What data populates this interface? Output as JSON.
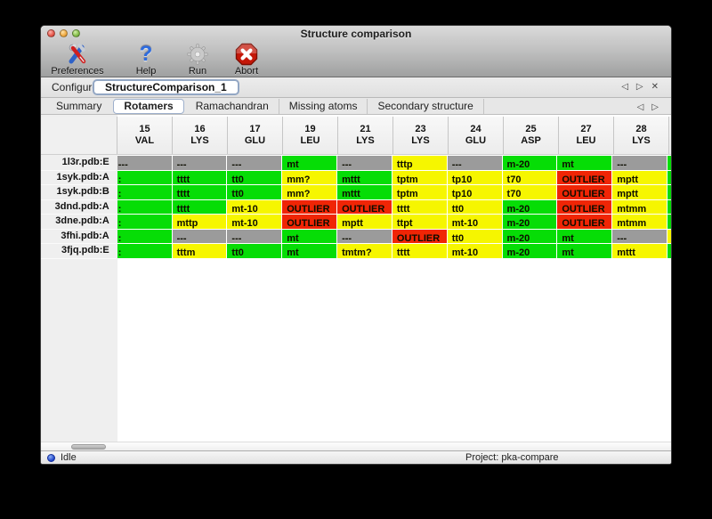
{
  "window": {
    "title": "Structure comparison"
  },
  "toolbar": {
    "items": [
      {
        "label": "Preferences",
        "icon": "tools-icon"
      },
      {
        "label": "Help",
        "icon": "question-icon"
      },
      {
        "label": "Run",
        "icon": "gear-icon"
      },
      {
        "label": "Abort",
        "icon": "abort-icon"
      }
    ]
  },
  "configure_bar": {
    "label": "Configure",
    "session_tab": "StructureComparison_1",
    "nav": {
      "prev": "◁",
      "next": "▷",
      "close": "✕"
    }
  },
  "tab_bar": {
    "tabs": [
      "Summary",
      "Rotamers",
      "Ramachandran",
      "Missing atoms",
      "Secondary structure"
    ],
    "active_index": 1,
    "nav": {
      "prev": "◁",
      "next": "▷"
    }
  },
  "rotamer_table": {
    "columns": [
      {
        "num": "15",
        "res": "VAL"
      },
      {
        "num": "16",
        "res": "LYS"
      },
      {
        "num": "17",
        "res": "GLU"
      },
      {
        "num": "19",
        "res": "LEU"
      },
      {
        "num": "21",
        "res": "LYS"
      },
      {
        "num": "23",
        "res": "LYS"
      },
      {
        "num": "24",
        "res": "GLU"
      },
      {
        "num": "25",
        "res": "ASP"
      },
      {
        "num": "27",
        "res": "LEU"
      },
      {
        "num": "28",
        "res": "LYS"
      }
    ],
    "legend_colors": {
      "green": "#06dd06",
      "yellow": "#f6f600",
      "red": "#f02505",
      "gray": "#9b9b9b"
    },
    "rows": [
      {
        "label": "1l3r.pdb:E",
        "edge": "green",
        "cells": [
          {
            "t": "---",
            "c": "gray"
          },
          {
            "t": "---",
            "c": "gray"
          },
          {
            "t": "---",
            "c": "gray"
          },
          {
            "t": "mt",
            "c": "green"
          },
          {
            "t": "---",
            "c": "gray"
          },
          {
            "t": "tttp",
            "c": "yellow"
          },
          {
            "t": "---",
            "c": "gray"
          },
          {
            "t": "m-20",
            "c": "green"
          },
          {
            "t": "mt",
            "c": "green"
          },
          {
            "t": "---",
            "c": "gray"
          }
        ]
      },
      {
        "label": "1syk.pdb:A",
        "edge": "green",
        "cells": [
          {
            "t": ":",
            "c": "green"
          },
          {
            "t": "tttt",
            "c": "green"
          },
          {
            "t": "tt0",
            "c": "green"
          },
          {
            "t": "mm?",
            "c": "yellow"
          },
          {
            "t": "mttt",
            "c": "green"
          },
          {
            "t": "tptm",
            "c": "yellow"
          },
          {
            "t": "tp10",
            "c": "yellow"
          },
          {
            "t": "t70",
            "c": "yellow"
          },
          {
            "t": "OUTLIER",
            "c": "red"
          },
          {
            "t": "mptt",
            "c": "yellow"
          }
        ]
      },
      {
        "label": "1syk.pdb:B",
        "edge": "green",
        "cells": [
          {
            "t": ":",
            "c": "green"
          },
          {
            "t": "tttt",
            "c": "green"
          },
          {
            "t": "tt0",
            "c": "green"
          },
          {
            "t": "mm?",
            "c": "yellow"
          },
          {
            "t": "mttt",
            "c": "green"
          },
          {
            "t": "tptm",
            "c": "yellow"
          },
          {
            "t": "tp10",
            "c": "yellow"
          },
          {
            "t": "t70",
            "c": "yellow"
          },
          {
            "t": "OUTLIER",
            "c": "red"
          },
          {
            "t": "mptt",
            "c": "yellow"
          }
        ]
      },
      {
        "label": "3dnd.pdb:A",
        "edge": "green",
        "cells": [
          {
            "t": ":",
            "c": "green"
          },
          {
            "t": "tttt",
            "c": "green"
          },
          {
            "t": "mt-10",
            "c": "yellow"
          },
          {
            "t": "OUTLIER",
            "c": "red"
          },
          {
            "t": "OUTLIER",
            "c": "red"
          },
          {
            "t": "tttt",
            "c": "yellow"
          },
          {
            "t": "tt0",
            "c": "yellow"
          },
          {
            "t": "m-20",
            "c": "green"
          },
          {
            "t": "OUTLIER",
            "c": "red"
          },
          {
            "t": "mtmm",
            "c": "yellow"
          }
        ]
      },
      {
        "label": "3dne.pdb:A",
        "edge": "green",
        "cells": [
          {
            "t": ":",
            "c": "green"
          },
          {
            "t": "mttp",
            "c": "yellow"
          },
          {
            "t": "mt-10",
            "c": "yellow"
          },
          {
            "t": "OUTLIER",
            "c": "red"
          },
          {
            "t": "mptt",
            "c": "yellow"
          },
          {
            "t": "ttpt",
            "c": "yellow"
          },
          {
            "t": "mt-10",
            "c": "yellow"
          },
          {
            "t": "m-20",
            "c": "green"
          },
          {
            "t": "OUTLIER",
            "c": "red"
          },
          {
            "t": "mtmm",
            "c": "yellow"
          }
        ]
      },
      {
        "label": "3fhi.pdb:A",
        "edge": "yellow",
        "cells": [
          {
            "t": ":",
            "c": "green"
          },
          {
            "t": "---",
            "c": "gray"
          },
          {
            "t": "---",
            "c": "gray"
          },
          {
            "t": "mt",
            "c": "green"
          },
          {
            "t": "---",
            "c": "gray"
          },
          {
            "t": "OUTLIER",
            "c": "red"
          },
          {
            "t": "tt0",
            "c": "yellow"
          },
          {
            "t": "m-20",
            "c": "green"
          },
          {
            "t": "mt",
            "c": "green"
          },
          {
            "t": "---",
            "c": "gray"
          }
        ]
      },
      {
        "label": "3fjq.pdb:E",
        "edge": "green",
        "cells": [
          {
            "t": ":",
            "c": "green"
          },
          {
            "t": "tttm",
            "c": "yellow"
          },
          {
            "t": "tt0",
            "c": "green"
          },
          {
            "t": "mt",
            "c": "green"
          },
          {
            "t": "tmtm?",
            "c": "yellow"
          },
          {
            "t": "tttt",
            "c": "yellow"
          },
          {
            "t": "mt-10",
            "c": "yellow"
          },
          {
            "t": "m-20",
            "c": "green"
          },
          {
            "t": "mt",
            "c": "green"
          },
          {
            "t": "mttt",
            "c": "yellow"
          }
        ]
      }
    ]
  },
  "status_bar": {
    "state": "Idle",
    "project_label": "Project: pka-compare"
  }
}
